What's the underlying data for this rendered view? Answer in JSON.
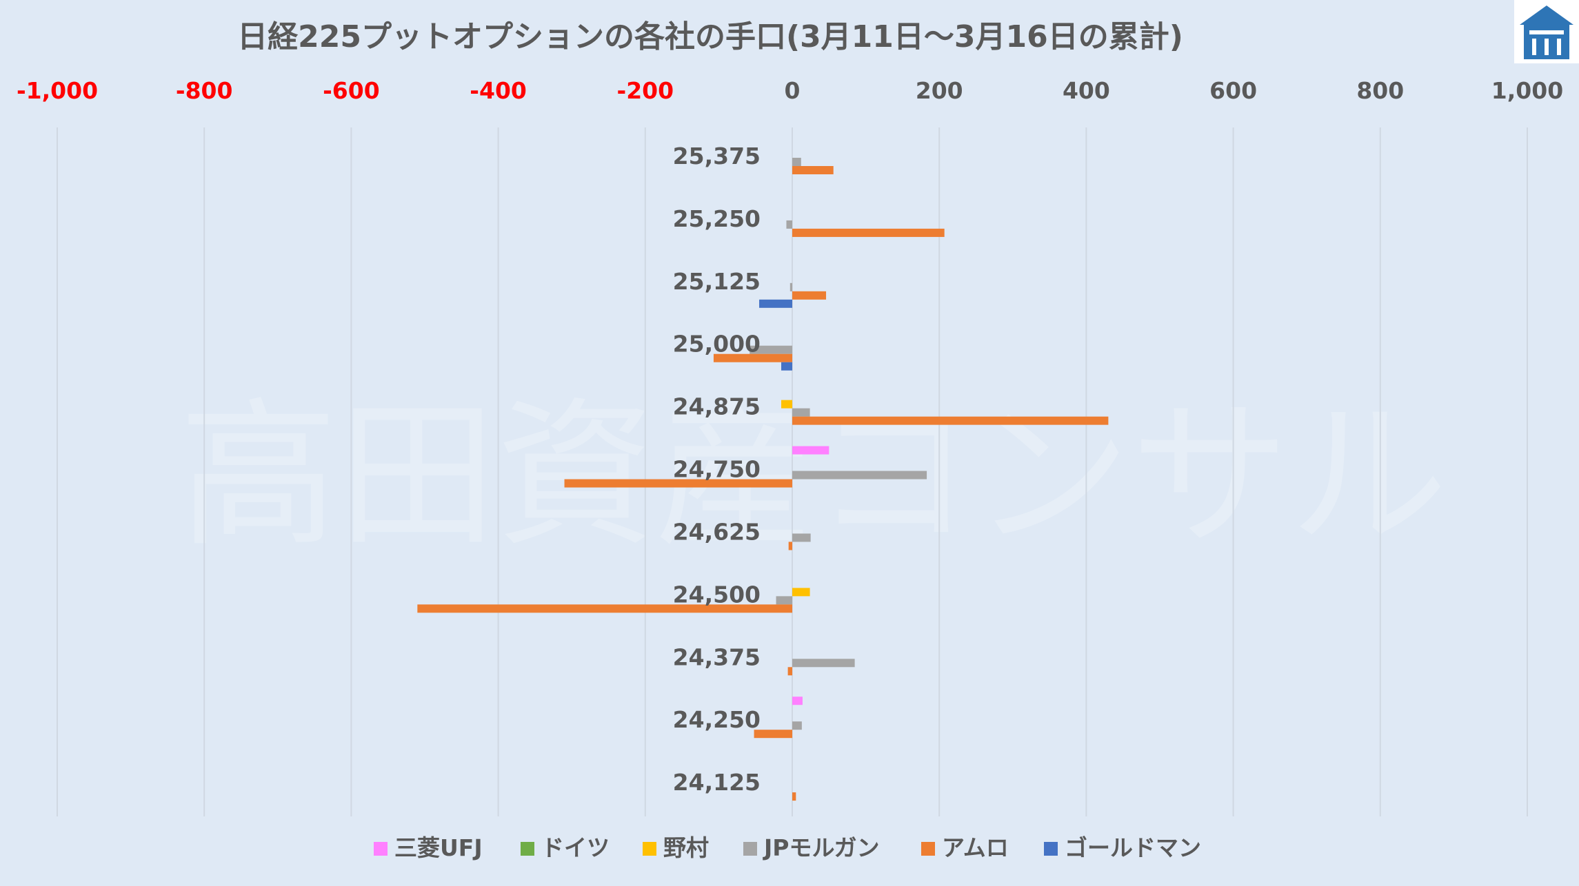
{
  "watermark": "高田資産コンサル",
  "logo": {
    "name": "house-logo-icon",
    "color": "#2e75b6"
  },
  "chart_data": {
    "type": "bar",
    "orientation": "horizontal",
    "title": "日経225プットオプションの各社の手口(3月11日～3月16日の累計)",
    "xlim": [
      -1000,
      1000
    ],
    "x_ticks": [
      -1000,
      -800,
      -600,
      -400,
      -200,
      0,
      200,
      400,
      600,
      800,
      1000
    ],
    "x_tick_labels": [
      "-1,000",
      "-800",
      "-600",
      "-400",
      "-200",
      "0",
      "200",
      "400",
      "600",
      "800",
      "1,000"
    ],
    "negative_tick_color": "#ff0000",
    "positive_tick_color": "#595959",
    "grid": true,
    "legend_position": "bottom",
    "categories": [
      "25,375",
      "25,250",
      "25,125",
      "25,000",
      "24,875",
      "24,750",
      "24,625",
      "24,500",
      "24,375",
      "24,250",
      "24,125"
    ],
    "series": [
      {
        "name": "三菱UFJ",
        "color": "#ff80ff",
        "values": [
          0,
          0,
          0,
          0,
          0,
          50,
          0,
          0,
          0,
          14,
          0
        ]
      },
      {
        "name": "ドイツ",
        "color": "#70ad47",
        "values": [
          0,
          0,
          0,
          0,
          0,
          0,
          0,
          0,
          0,
          0,
          0
        ]
      },
      {
        "name": "野村",
        "color": "#ffc000",
        "values": [
          0,
          0,
          0,
          0,
          -15,
          0,
          0,
          24,
          0,
          0,
          0
        ]
      },
      {
        "name": "JPモルガン",
        "color": "#a5a5a5",
        "values": [
          12,
          -8,
          -3,
          -58,
          24,
          183,
          25,
          -22,
          85,
          13,
          0
        ]
      },
      {
        "name": "アムロ",
        "color": "#ed7d31",
        "values": [
          56,
          207,
          46,
          -107,
          430,
          -310,
          -5,
          -510,
          -6,
          -52,
          5
        ]
      },
      {
        "name": "ゴールドマン",
        "color": "#4472c4",
        "values": [
          0,
          0,
          -45,
          -15,
          0,
          0,
          0,
          0,
          0,
          0,
          0
        ]
      }
    ]
  }
}
